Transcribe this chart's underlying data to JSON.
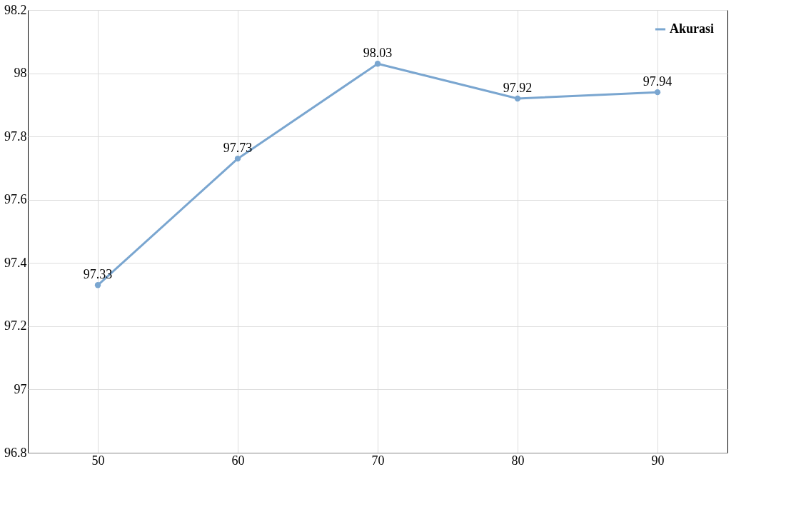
{
  "chart_data": {
    "type": "line",
    "categories": [
      "50",
      "60",
      "70",
      "80",
      "90"
    ],
    "series": [
      {
        "name": "Akurasi",
        "color": "#7aa6d0",
        "values": [
          97.33,
          97.73,
          98.03,
          97.92,
          97.94
        ]
      }
    ],
    "ylim": [
      96.8,
      98.2
    ],
    "yticks": [
      96.8,
      97,
      97.2,
      97.4,
      97.6,
      97.8,
      98,
      98.2
    ],
    "grid": true,
    "legend": "top right",
    "marker": "circle",
    "line_style": "solid",
    "data_labels": true
  }
}
